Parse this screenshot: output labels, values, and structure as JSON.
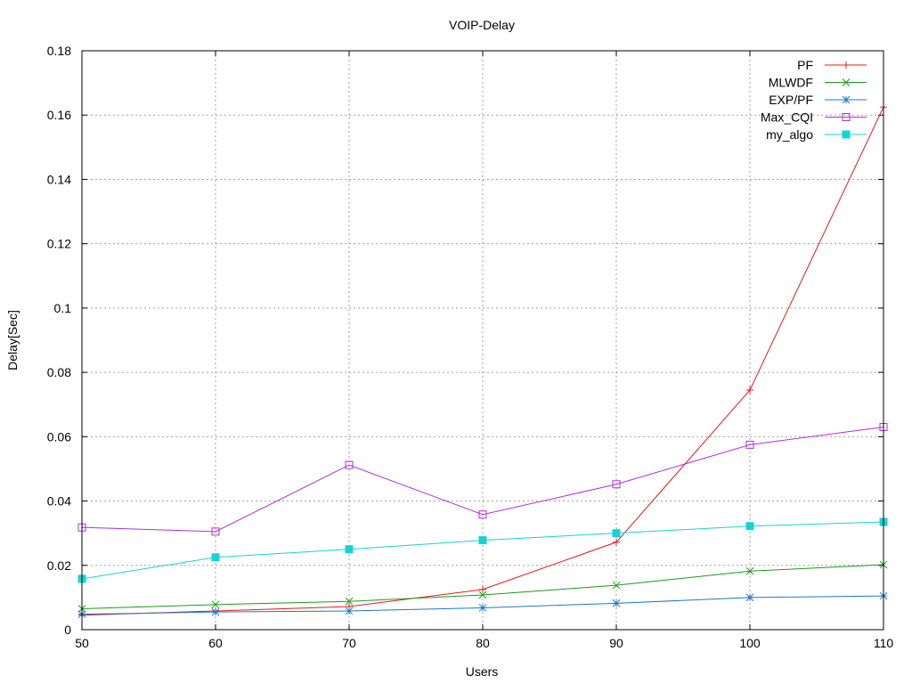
{
  "chart_data": {
    "type": "line",
    "title": "VOIP-Delay",
    "xlabel": "Users",
    "ylabel": "Delay[Sec]",
    "xlim": [
      50,
      110
    ],
    "ylim": [
      0,
      0.18
    ],
    "grid": true,
    "legend_position": "top-right",
    "x_ticks": [
      "50",
      "60",
      "70",
      "80",
      "90",
      "100",
      "110"
    ],
    "y_ticks": [
      "0",
      "0.02",
      "0.04",
      "0.06",
      "0.08",
      "0.1",
      "0.12",
      "0.14",
      "0.16",
      "0.18"
    ],
    "x": [
      50,
      60,
      70,
      80,
      90,
      100,
      110
    ],
    "series": [
      {
        "name": "PF",
        "color": "#e41a1c",
        "marker": "plus",
        "values": [
          0.0045,
          0.0058,
          0.0072,
          0.0125,
          0.0272,
          0.0745,
          0.1625
        ]
      },
      {
        "name": "MLWDF",
        "color": "#1a9b1a",
        "marker": "x",
        "values": [
          0.0065,
          0.0078,
          0.0088,
          0.0108,
          0.0138,
          0.0182,
          0.0202
        ]
      },
      {
        "name": "EXP/PF",
        "color": "#1f78c8",
        "marker": "star",
        "values": [
          0.0048,
          0.0055,
          0.0058,
          0.0068,
          0.0082,
          0.01,
          0.0105
        ]
      },
      {
        "name": "Max_CQI",
        "color": "#b22ee0",
        "marker": "square-open",
        "values": [
          0.0318,
          0.0305,
          0.0512,
          0.0358,
          0.0452,
          0.0575,
          0.063
        ]
      },
      {
        "name": "my_algo",
        "color": "#17d3d3",
        "marker": "square-filled",
        "values": [
          0.0158,
          0.0225,
          0.025,
          0.0278,
          0.03,
          0.0322,
          0.0335
        ]
      }
    ]
  }
}
